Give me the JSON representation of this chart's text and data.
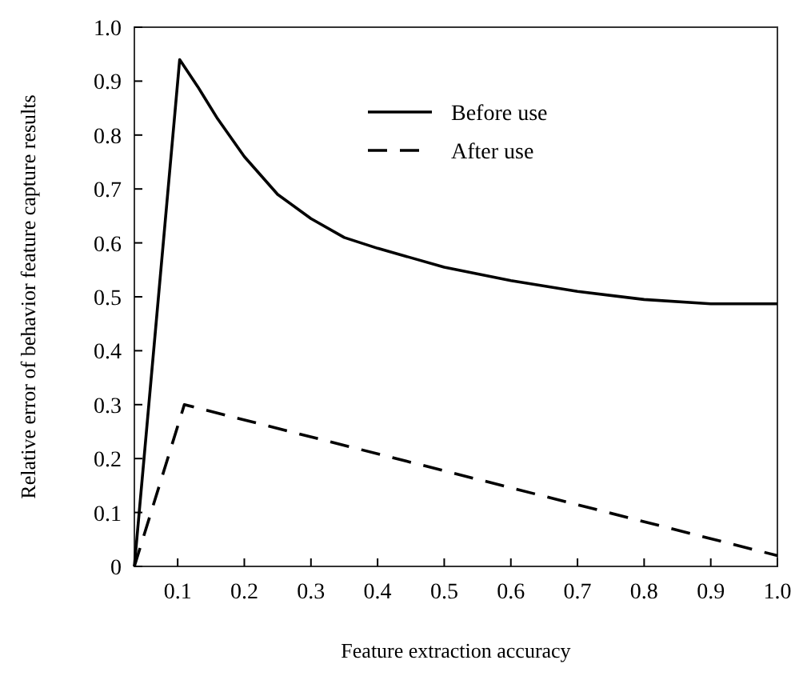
{
  "chart_data": {
    "type": "line",
    "xlabel": "Feature extraction accuracy",
    "ylabel": "Relative error of behavior feature capture results",
    "xlim": [
      0.035,
      1.0
    ],
    "ylim": [
      0,
      1.0
    ],
    "xticks": [
      0.1,
      0.2,
      0.3,
      0.4,
      0.5,
      0.6,
      0.7,
      0.8,
      0.9,
      {
        "value": 1.0,
        "label": "1.0"
      }
    ],
    "yticks": [
      0,
      0.1,
      0.2,
      0.3,
      0.4,
      0.5,
      0.6,
      0.7,
      0.8,
      0.9,
      {
        "value": 1.0,
        "label": "1.0"
      }
    ],
    "grid": false,
    "legend": "top",
    "marker": "none",
    "series": [
      {
        "name": "Before use",
        "color": "#000000",
        "line_style": "solid",
        "x": [
          0.035,
          0.103,
          0.13,
          0.16,
          0.2,
          0.25,
          0.3,
          0.35,
          0.4,
          0.5,
          0.6,
          0.7,
          0.8,
          0.9,
          1.0
        ],
        "values": [
          0,
          0.94,
          0.89,
          0.83,
          0.76,
          0.69,
          0.645,
          0.61,
          0.59,
          0.555,
          0.53,
          0.51,
          0.495,
          0.487,
          0.487
        ]
      },
      {
        "name": "After use",
        "color": "#000000",
        "line_style": "dashed",
        "x": [
          0.035,
          0.11,
          1.0
        ],
        "values": [
          0,
          0.3,
          0.02
        ]
      }
    ]
  }
}
